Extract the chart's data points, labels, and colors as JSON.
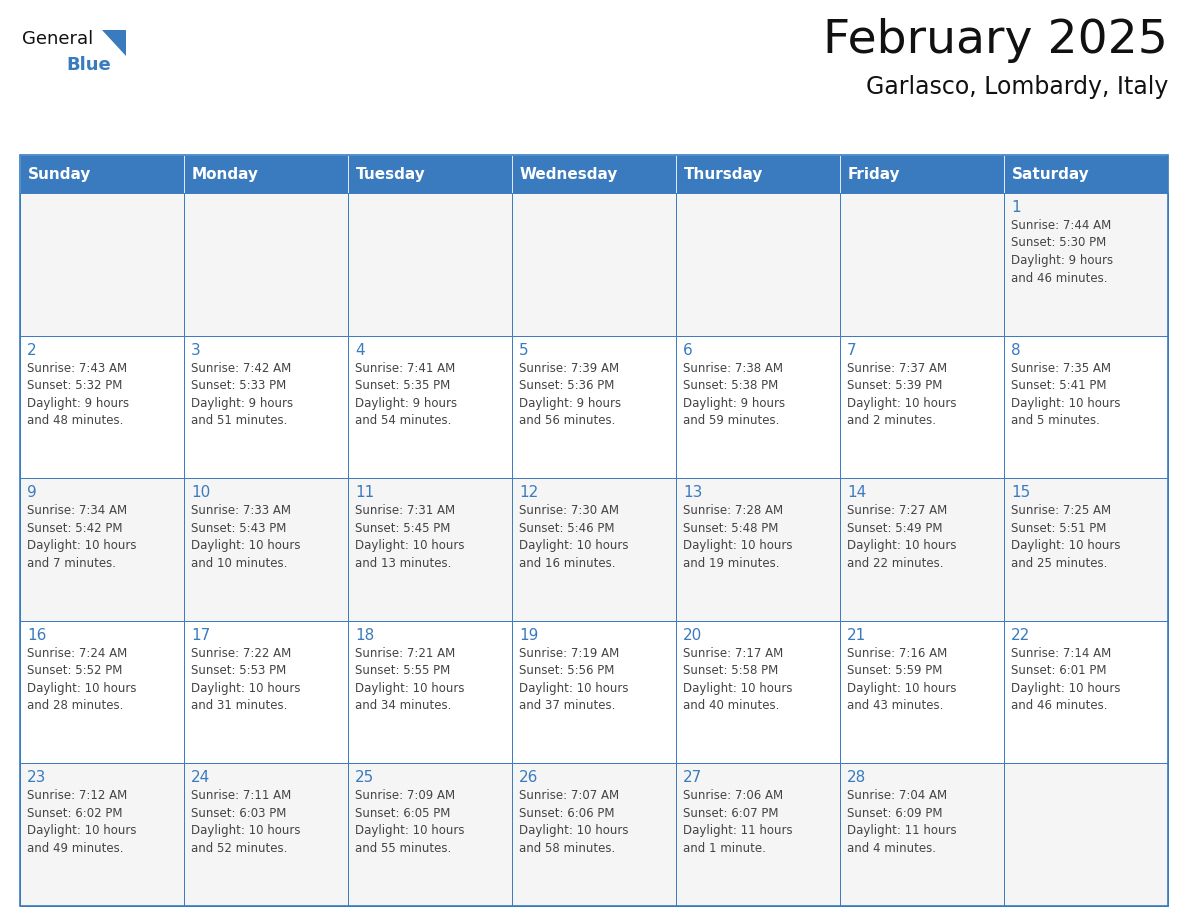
{
  "title": "February 2025",
  "subtitle": "Garlasco, Lombardy, Italy",
  "days_of_week": [
    "Sunday",
    "Monday",
    "Tuesday",
    "Wednesday",
    "Thursday",
    "Friday",
    "Saturday"
  ],
  "header_bg": "#3a7bbf",
  "header_text": "#ffffff",
  "border_color": "#3a7bbf",
  "text_color": "#444444",
  "day_number_color": "#3a7bbf",
  "logo_general_color": "#111111",
  "logo_blue_color": "#3a7bbf",
  "logo_triangle_color": "#3a7bbf",
  "calendar_data": [
    [
      {
        "day": null,
        "info": ""
      },
      {
        "day": null,
        "info": ""
      },
      {
        "day": null,
        "info": ""
      },
      {
        "day": null,
        "info": ""
      },
      {
        "day": null,
        "info": ""
      },
      {
        "day": null,
        "info": ""
      },
      {
        "day": 1,
        "info": "Sunrise: 7:44 AM\nSunset: 5:30 PM\nDaylight: 9 hours\nand 46 minutes."
      }
    ],
    [
      {
        "day": 2,
        "info": "Sunrise: 7:43 AM\nSunset: 5:32 PM\nDaylight: 9 hours\nand 48 minutes."
      },
      {
        "day": 3,
        "info": "Sunrise: 7:42 AM\nSunset: 5:33 PM\nDaylight: 9 hours\nand 51 minutes."
      },
      {
        "day": 4,
        "info": "Sunrise: 7:41 AM\nSunset: 5:35 PM\nDaylight: 9 hours\nand 54 minutes."
      },
      {
        "day": 5,
        "info": "Sunrise: 7:39 AM\nSunset: 5:36 PM\nDaylight: 9 hours\nand 56 minutes."
      },
      {
        "day": 6,
        "info": "Sunrise: 7:38 AM\nSunset: 5:38 PM\nDaylight: 9 hours\nand 59 minutes."
      },
      {
        "day": 7,
        "info": "Sunrise: 7:37 AM\nSunset: 5:39 PM\nDaylight: 10 hours\nand 2 minutes."
      },
      {
        "day": 8,
        "info": "Sunrise: 7:35 AM\nSunset: 5:41 PM\nDaylight: 10 hours\nand 5 minutes."
      }
    ],
    [
      {
        "day": 9,
        "info": "Sunrise: 7:34 AM\nSunset: 5:42 PM\nDaylight: 10 hours\nand 7 minutes."
      },
      {
        "day": 10,
        "info": "Sunrise: 7:33 AM\nSunset: 5:43 PM\nDaylight: 10 hours\nand 10 minutes."
      },
      {
        "day": 11,
        "info": "Sunrise: 7:31 AM\nSunset: 5:45 PM\nDaylight: 10 hours\nand 13 minutes."
      },
      {
        "day": 12,
        "info": "Sunrise: 7:30 AM\nSunset: 5:46 PM\nDaylight: 10 hours\nand 16 minutes."
      },
      {
        "day": 13,
        "info": "Sunrise: 7:28 AM\nSunset: 5:48 PM\nDaylight: 10 hours\nand 19 minutes."
      },
      {
        "day": 14,
        "info": "Sunrise: 7:27 AM\nSunset: 5:49 PM\nDaylight: 10 hours\nand 22 minutes."
      },
      {
        "day": 15,
        "info": "Sunrise: 7:25 AM\nSunset: 5:51 PM\nDaylight: 10 hours\nand 25 minutes."
      }
    ],
    [
      {
        "day": 16,
        "info": "Sunrise: 7:24 AM\nSunset: 5:52 PM\nDaylight: 10 hours\nand 28 minutes."
      },
      {
        "day": 17,
        "info": "Sunrise: 7:22 AM\nSunset: 5:53 PM\nDaylight: 10 hours\nand 31 minutes."
      },
      {
        "day": 18,
        "info": "Sunrise: 7:21 AM\nSunset: 5:55 PM\nDaylight: 10 hours\nand 34 minutes."
      },
      {
        "day": 19,
        "info": "Sunrise: 7:19 AM\nSunset: 5:56 PM\nDaylight: 10 hours\nand 37 minutes."
      },
      {
        "day": 20,
        "info": "Sunrise: 7:17 AM\nSunset: 5:58 PM\nDaylight: 10 hours\nand 40 minutes."
      },
      {
        "day": 21,
        "info": "Sunrise: 7:16 AM\nSunset: 5:59 PM\nDaylight: 10 hours\nand 43 minutes."
      },
      {
        "day": 22,
        "info": "Sunrise: 7:14 AM\nSunset: 6:01 PM\nDaylight: 10 hours\nand 46 minutes."
      }
    ],
    [
      {
        "day": 23,
        "info": "Sunrise: 7:12 AM\nSunset: 6:02 PM\nDaylight: 10 hours\nand 49 minutes."
      },
      {
        "day": 24,
        "info": "Sunrise: 7:11 AM\nSunset: 6:03 PM\nDaylight: 10 hours\nand 52 minutes."
      },
      {
        "day": 25,
        "info": "Sunrise: 7:09 AM\nSunset: 6:05 PM\nDaylight: 10 hours\nand 55 minutes."
      },
      {
        "day": 26,
        "info": "Sunrise: 7:07 AM\nSunset: 6:06 PM\nDaylight: 10 hours\nand 58 minutes."
      },
      {
        "day": 27,
        "info": "Sunrise: 7:06 AM\nSunset: 6:07 PM\nDaylight: 11 hours\nand 1 minute."
      },
      {
        "day": 28,
        "info": "Sunrise: 7:04 AM\nSunset: 6:09 PM\nDaylight: 11 hours\nand 4 minutes."
      },
      {
        "day": null,
        "info": ""
      }
    ]
  ]
}
